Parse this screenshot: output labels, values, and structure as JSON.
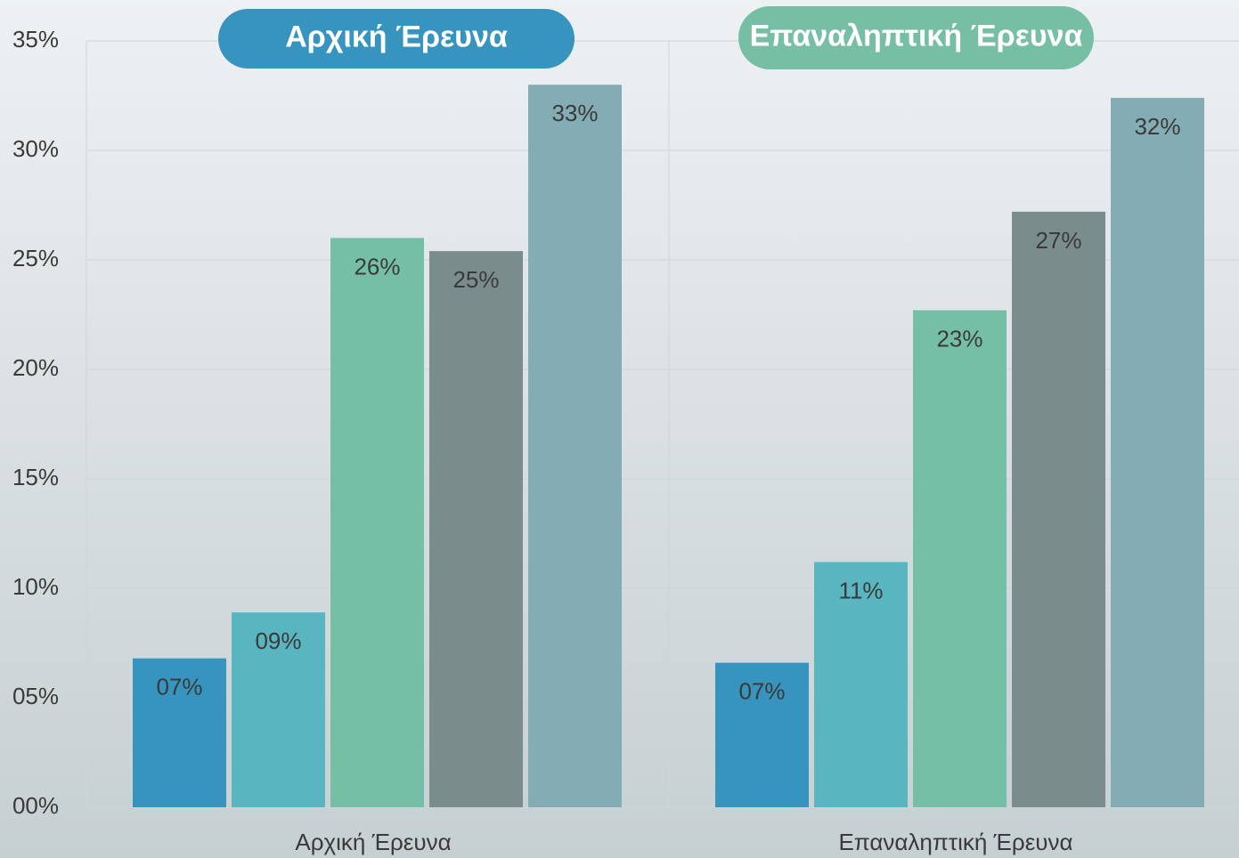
{
  "chart_data": {
    "type": "bar",
    "categories": [
      "Αρχική Έρευνα",
      "Επαναληπτική Έρευνα"
    ],
    "series": [
      {
        "color": "#3794bf",
        "values": [
          6.8,
          6.6
        ],
        "value_labels": [
          "07%",
          "07%"
        ]
      },
      {
        "color": "#59b6c1",
        "values": [
          8.9,
          11.2
        ],
        "value_labels": [
          "09%",
          "11%"
        ]
      },
      {
        "color": "#76bfa7",
        "values": [
          26.0,
          22.7
        ],
        "value_labels": [
          "26%",
          "23%"
        ]
      },
      {
        "color": "#7a8c8c",
        "values": [
          25.4,
          27.2
        ],
        "value_labels": [
          "25%",
          "27%"
        ]
      },
      {
        "color": "#84acb5",
        "values": [
          33.0,
          32.4
        ],
        "value_labels": [
          "33%",
          "32%"
        ]
      }
    ],
    "ylim": [
      0,
      35
    ],
    "yticks": [
      {
        "value": 0,
        "label": "00%"
      },
      {
        "value": 5,
        "label": "05%"
      },
      {
        "value": 10,
        "label": "10%"
      },
      {
        "value": 15,
        "label": "15%"
      },
      {
        "value": 20,
        "label": "20%"
      },
      {
        "value": 25,
        "label": "25%"
      },
      {
        "value": 30,
        "label": "30%"
      },
      {
        "value": 35,
        "label": "35%"
      }
    ],
    "grid": true,
    "header_colors": [
      "#3794bf",
      "#76bfa5"
    ]
  }
}
